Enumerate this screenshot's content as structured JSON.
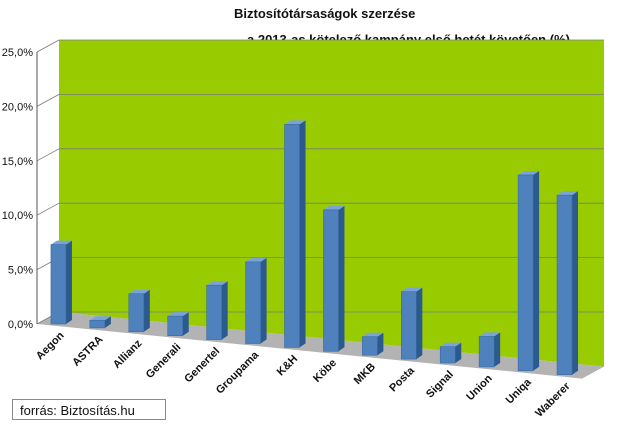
{
  "chart_data": {
    "type": "bar",
    "title": "Biztosítótársaságok szerzése",
    "subtitle": "a 2013-as kötelező kampány első hetét követően (%)",
    "categories": [
      "Aegon",
      "ASTRA",
      "Allianz",
      "Generali",
      "Genertel",
      "Groupama",
      "K&H",
      "Köbe",
      "MKB",
      "Posta",
      "Signal",
      "Union",
      "Uniqa",
      "Waberer"
    ],
    "values": [
      7.3,
      0.7,
      3.5,
      1.8,
      5.0,
      7.5,
      20.5,
      13.0,
      1.7,
      6.2,
      1.5,
      2.8,
      18.0,
      16.5
    ],
    "ylim": [
      0,
      25
    ],
    "yticks": [
      "0,0%",
      "5,0%",
      "10,0%",
      "15,0%",
      "20,0%",
      "25,0%"
    ],
    "grid": true,
    "colors": {
      "wall": "#99cc00",
      "floor": "#b3b3b3",
      "bar_front": "#4f81bd",
      "bar_side": "#2c5a8e",
      "bar_top": "#7aa3d6"
    }
  },
  "source": "forrás: Biztosítás.hu"
}
